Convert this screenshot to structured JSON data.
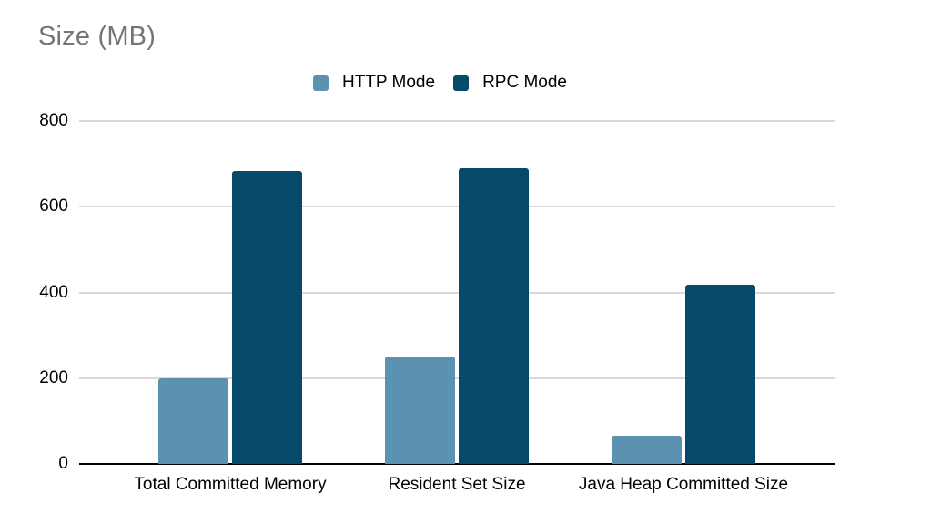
{
  "chart_data": {
    "type": "bar",
    "title": "Size (MB)",
    "title_color": "#757575",
    "categories": [
      "Total Committed Memory",
      "Resident Set Size",
      "Java Heap Committed Size"
    ],
    "series": [
      {
        "name": "HTTP Mode",
        "color": "#5b92b1",
        "values": [
          200,
          250,
          66
        ]
      },
      {
        "name": "RPC Mode",
        "color": "#054a6b",
        "values": [
          683,
          689,
          419
        ]
      }
    ],
    "xlabel": "",
    "ylabel": "",
    "ylim": [
      0,
      800
    ],
    "yticks": [
      0,
      200,
      400,
      600,
      800
    ],
    "legend_position": "top",
    "grid": "horizontal",
    "gridline_color": "#d9d9d9",
    "axis_color": "#000000",
    "label_color": "#000000",
    "background_color": "#ffffff"
  }
}
